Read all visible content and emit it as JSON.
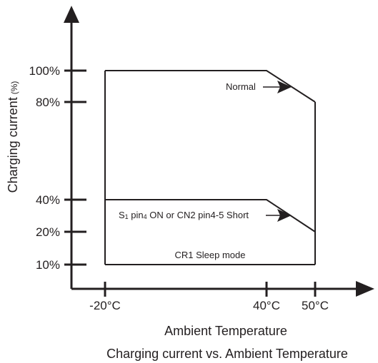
{
  "chart_data": {
    "type": "line",
    "title": "Charging current vs. Ambient Temperature",
    "xlabel": "Ambient Temperature",
    "ylabel": "Charging current",
    "ylabel_unit": "(%)",
    "x_ticks": [
      {
        "value": -20,
        "label": "-20°C"
      },
      {
        "value": 40,
        "label": "40°C"
      },
      {
        "value": 50,
        "label": "50°C"
      }
    ],
    "y_ticks": [
      {
        "value": 100,
        "label": "100%"
      },
      {
        "value": 80,
        "label": "80%"
      },
      {
        "value": 40,
        "label": "40%"
      },
      {
        "value": 20,
        "label": "20%"
      },
      {
        "value": 10,
        "label": "10%"
      }
    ],
    "series": [
      {
        "name": "Normal",
        "x": [
          -20,
          40,
          50
        ],
        "y": [
          100,
          100,
          80
        ]
      },
      {
        "name": "S1 pin4 ON or CN2 pin4-5 Short",
        "x": [
          -20,
          40,
          50
        ],
        "y": [
          40,
          40,
          20
        ]
      },
      {
        "name": "CR1 Sleep mode",
        "x": [
          -20,
          40,
          50
        ],
        "y": [
          10,
          10,
          10
        ]
      }
    ],
    "legend": "none",
    "grid": false,
    "series_label_parts": {
      "s1_prefix": "S",
      "s1_sub": "1",
      "pin_mid": " pin",
      "pin_sub": "4",
      "tail": " ON or CN2 pin4-5 Short"
    }
  }
}
